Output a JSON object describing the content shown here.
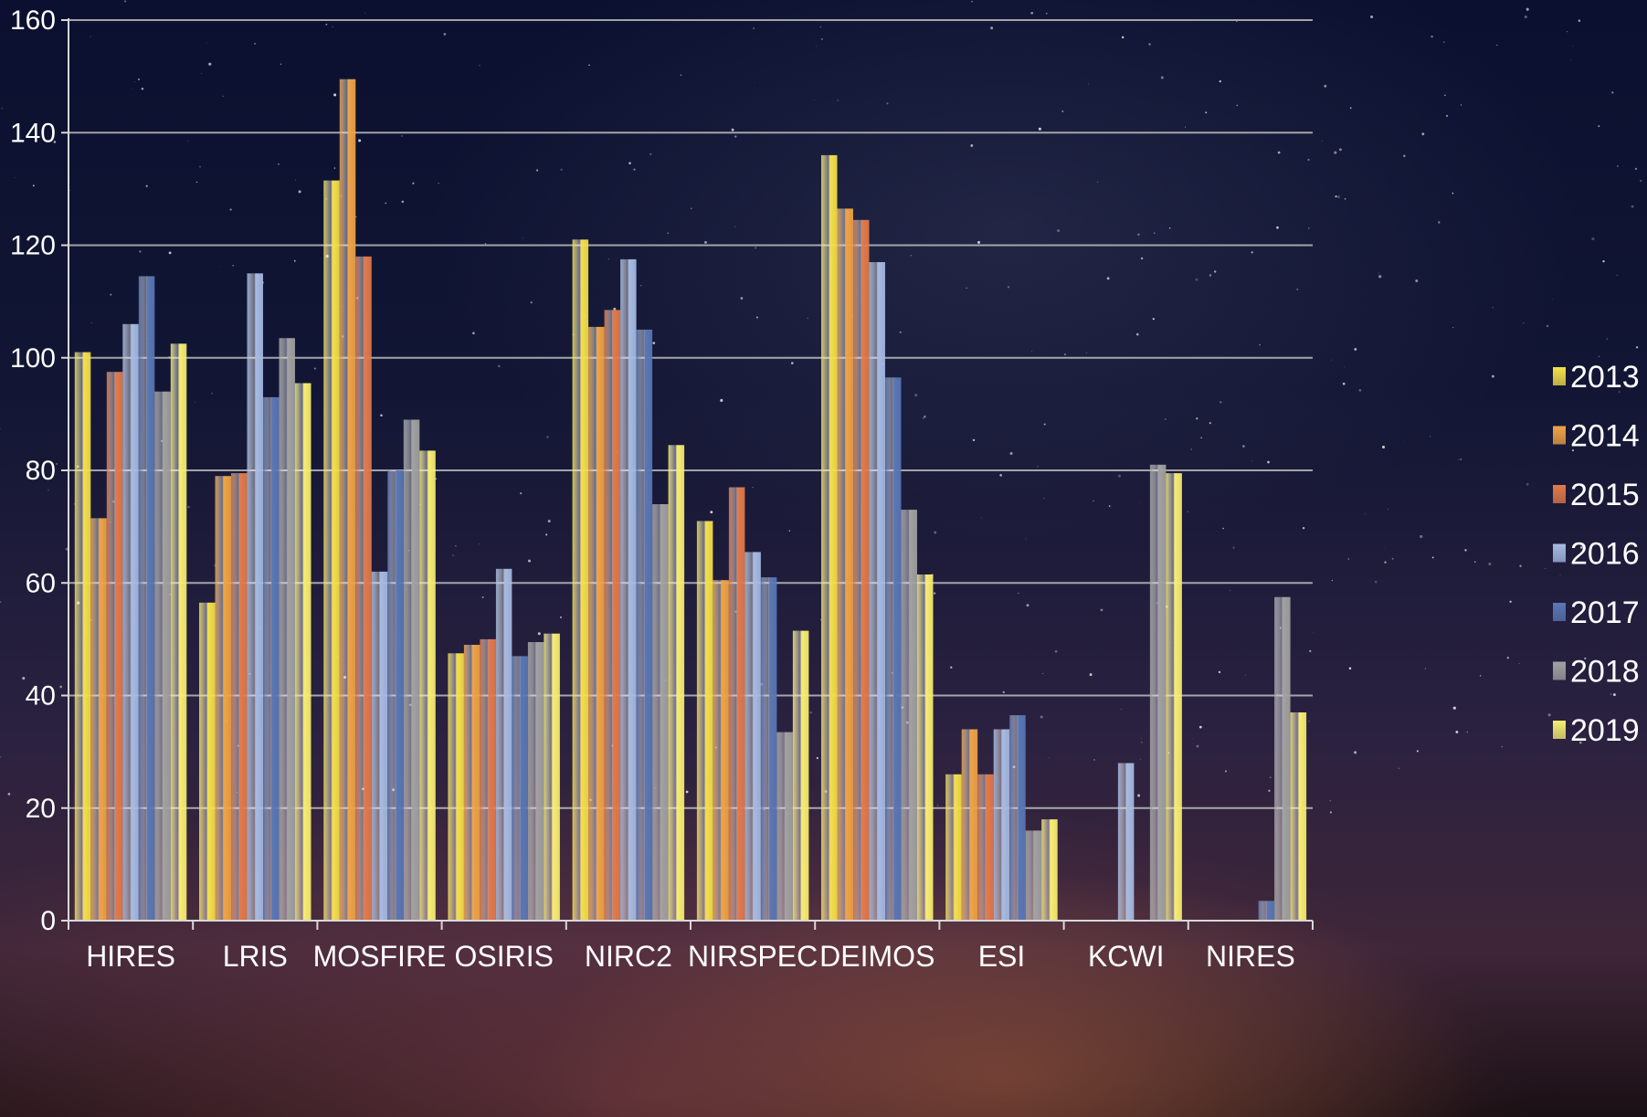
{
  "chart_data": {
    "type": "bar",
    "title": "",
    "xlabel": "",
    "ylabel": "",
    "ylim": [
      0,
      160
    ],
    "yticks": [
      0,
      20,
      40,
      60,
      80,
      100,
      120,
      140,
      160
    ],
    "grid": true,
    "legend_position": "right",
    "categories": [
      "HIRES",
      "LRIS",
      "MOSFIRE",
      "OSIRIS",
      "NIRC2",
      "NIRSPEC",
      "DEIMOS",
      "ESI",
      "KCWI",
      "NIRES"
    ],
    "series": [
      {
        "name": "2013",
        "color": "#f5e04a",
        "values": [
          101,
          56.5,
          131.5,
          47.5,
          121,
          71,
          136,
          26,
          0,
          0
        ]
      },
      {
        "name": "2014",
        "color": "#f0a446",
        "values": [
          71.5,
          79,
          149.5,
          49,
          105.5,
          60.5,
          126.5,
          34,
          0,
          0
        ]
      },
      {
        "name": "2015",
        "color": "#e47a4a",
        "values": [
          97.5,
          79.5,
          118,
          50,
          108.5,
          77,
          124.5,
          26,
          0,
          0
        ]
      },
      {
        "name": "2016",
        "color": "#a7bbe3",
        "values": [
          106,
          115,
          62,
          62.5,
          117.5,
          65.5,
          117,
          34,
          28,
          0
        ]
      },
      {
        "name": "2017",
        "color": "#5a78b6",
        "values": [
          114.5,
          93,
          80,
          47,
          105,
          61,
          96.5,
          36.5,
          0,
          3.5
        ]
      },
      {
        "name": "2018",
        "color": "#a2a2a2",
        "values": [
          94,
          103.5,
          89,
          49.5,
          74,
          33.5,
          73,
          16,
          81,
          57.5
        ]
      },
      {
        "name": "2019",
        "color": "#f8ee70",
        "values": [
          102.5,
          95.5,
          83.5,
          51,
          84.5,
          51.5,
          61.5,
          18,
          79.5,
          37
        ]
      }
    ]
  }
}
